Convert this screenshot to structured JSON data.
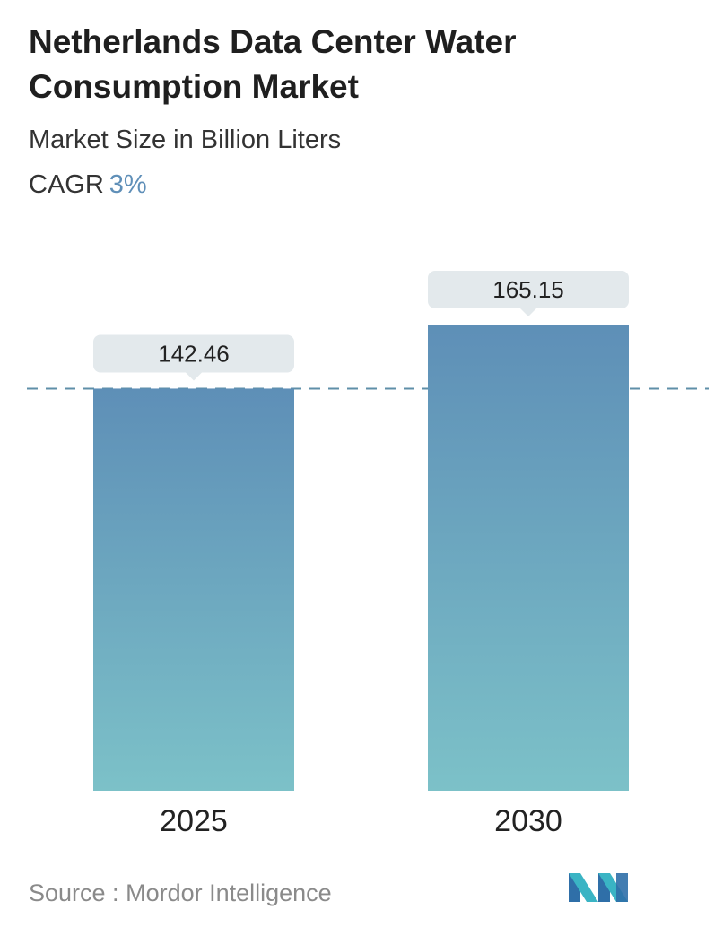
{
  "header": {
    "title": "Netherlands Data Center Water Consumption Market",
    "subtitle": "Market Size in Billion Liters",
    "cagr_label": "CAGR",
    "cagr_value": "3%"
  },
  "chart_data": {
    "type": "bar",
    "categories": [
      "2025",
      "2030"
    ],
    "values": [
      142.46,
      165.15
    ],
    "value_labels": [
      "142.46",
      "165.15"
    ],
    "title": "Netherlands Data Center Water Consumption Market",
    "subtitle": "Market Size in Billion Liters",
    "xlabel": "",
    "ylabel": "",
    "ylim": [
      0,
      165.15
    ],
    "grid": false,
    "reference_line": "dashed line at the 2025 value",
    "colors": {
      "bar_top": "#5e8fb7",
      "bar_bottom": "#7cc1c8",
      "label_bg": "#e3e9ec",
      "dashed_line": "#5f8fa8"
    }
  },
  "footer": {
    "source_label": "Source :",
    "source_name": "Mordor Intelligence",
    "logo_icon": "mordor-intelligence-logo-icon"
  }
}
